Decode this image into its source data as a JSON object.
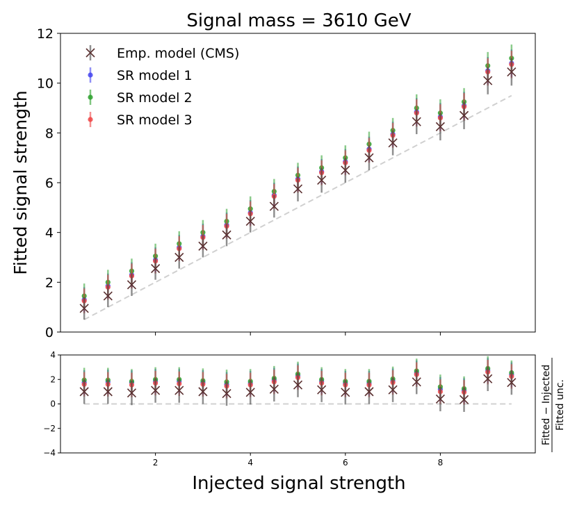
{
  "chart_data": {
    "type": "scatter",
    "title": "Signal mass = 3610 GeV",
    "xlabel": "Injected signal strength",
    "top": {
      "ylabel": "Fitted signal strength",
      "xlim": [
        0,
        10
      ],
      "ylim": [
        0,
        12
      ],
      "yticks": [
        "0",
        "2",
        "4",
        "6",
        "8",
        "10",
        "12"
      ],
      "legend_position": "upper-left"
    },
    "bottom": {
      "ylabel_num": "Fitted − Injected",
      "ylabel_den": "Fitted unc.",
      "xlim": [
        0,
        10
      ],
      "ylim": [
        -4,
        4
      ],
      "yticks": [
        "−4",
        "−2",
        "0",
        "2",
        "4"
      ],
      "xticks": [
        "2",
        "4",
        "6",
        "8"
      ]
    },
    "x": [
      0.5,
      1.0,
      1.5,
      2.0,
      2.5,
      3.0,
      3.5,
      4.0,
      4.5,
      5.0,
      5.5,
      6.0,
      6.5,
      7.0,
      7.5,
      8.0,
      8.5,
      9.0,
      9.5
    ],
    "reference_line": {
      "x": [
        0.5,
        9.5
      ],
      "y": [
        0.5,
        9.5
      ],
      "color": "#d0d0d0"
    },
    "series": [
      {
        "name": "Emp. model (CMS)",
        "marker": "x",
        "color": "#555555",
        "values": [
          0.95,
          1.45,
          1.9,
          2.55,
          3.0,
          3.45,
          3.9,
          4.45,
          5.05,
          5.75,
          6.1,
          6.5,
          7.0,
          7.6,
          8.45,
          8.25,
          8.7,
          10.1,
          10.45
        ],
        "err": [
          0.45,
          0.45,
          0.45,
          0.45,
          0.45,
          0.45,
          0.45,
          0.45,
          0.45,
          0.5,
          0.5,
          0.5,
          0.5,
          0.5,
          0.5,
          0.55,
          0.55,
          0.55,
          0.55
        ],
        "pull": [
          1.0,
          1.0,
          0.9,
          1.1,
          1.1,
          1.0,
          0.85,
          0.95,
          1.2,
          1.55,
          1.15,
          0.95,
          1.0,
          1.15,
          1.8,
          0.4,
          0.35,
          2.05,
          1.75
        ]
      },
      {
        "name": "SR model 1",
        "marker": "o",
        "color": "#4444ee",
        "values": [
          1.3,
          1.85,
          2.3,
          2.9,
          3.4,
          3.85,
          4.3,
          4.8,
          5.5,
          6.15,
          6.45,
          6.85,
          7.35,
          7.95,
          8.85,
          8.65,
          9.1,
          10.5,
          10.8
        ],
        "err": [
          0.5,
          0.5,
          0.5,
          0.5,
          0.5,
          0.5,
          0.5,
          0.5,
          0.5,
          0.5,
          0.5,
          0.5,
          0.5,
          0.5,
          0.55,
          0.55,
          0.55,
          0.55,
          0.55
        ],
        "pull": [
          1.75,
          1.8,
          1.75,
          1.85,
          1.85,
          1.75,
          1.6,
          1.7,
          1.95,
          2.3,
          1.85,
          1.7,
          1.7,
          1.9,
          2.55,
          1.2,
          1.1,
          2.75,
          2.4
        ]
      },
      {
        "name": "SR model 2",
        "marker": "o",
        "color": "#2ca02c",
        "values": [
          1.45,
          2.0,
          2.45,
          3.05,
          3.55,
          4.0,
          4.45,
          4.95,
          5.65,
          6.3,
          6.6,
          7.0,
          7.55,
          8.1,
          9.0,
          8.8,
          9.25,
          10.7,
          11.0
        ],
        "err": [
          0.5,
          0.5,
          0.5,
          0.5,
          0.5,
          0.5,
          0.5,
          0.5,
          0.5,
          0.5,
          0.5,
          0.5,
          0.5,
          0.5,
          0.55,
          0.55,
          0.55,
          0.55,
          0.55
        ],
        "pull": [
          1.95,
          1.95,
          1.85,
          2.0,
          2.0,
          1.9,
          1.8,
          1.85,
          2.1,
          2.45,
          2.0,
          1.85,
          1.85,
          2.05,
          2.7,
          1.4,
          1.25,
          2.9,
          2.55
        ]
      },
      {
        "name": "SR model 3",
        "marker": "o",
        "color": "#ee4444",
        "values": [
          1.25,
          1.8,
          2.25,
          2.85,
          3.35,
          3.8,
          4.25,
          4.75,
          5.45,
          6.1,
          6.4,
          6.8,
          7.3,
          7.9,
          8.8,
          8.6,
          9.05,
          10.45,
          10.75
        ],
        "err": [
          0.5,
          0.5,
          0.5,
          0.5,
          0.5,
          0.5,
          0.5,
          0.5,
          0.5,
          0.5,
          0.5,
          0.5,
          0.5,
          0.5,
          0.55,
          0.55,
          0.55,
          0.55,
          0.55
        ],
        "pull": [
          1.6,
          1.6,
          1.55,
          1.7,
          1.65,
          1.6,
          1.45,
          1.55,
          1.8,
          2.15,
          1.7,
          1.55,
          1.55,
          1.75,
          2.4,
          1.0,
          0.95,
          2.6,
          2.25
        ]
      }
    ]
  }
}
